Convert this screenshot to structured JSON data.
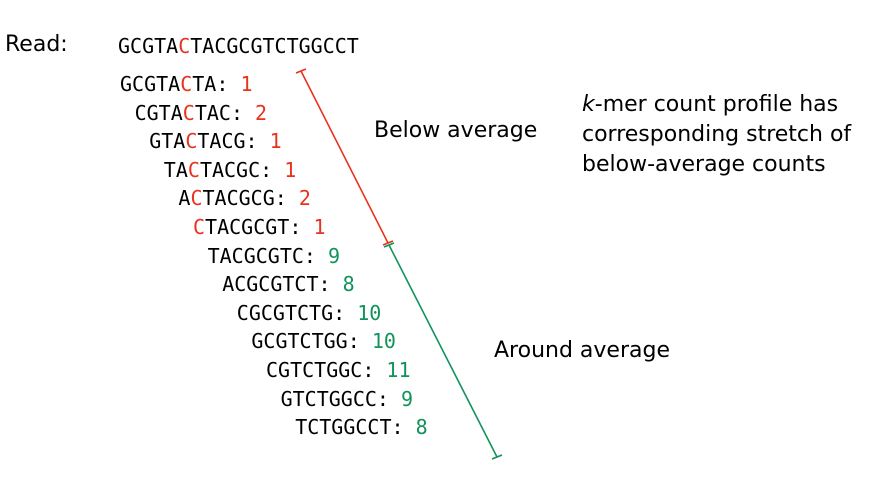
{
  "read": {
    "label": "Read:",
    "sequence_before": "GCGTA",
    "sequence_highlight": "C",
    "sequence_after": "TACGCGTCTGGCCT"
  },
  "kmers": [
    {
      "pre": "GCGTA",
      "hl": "C",
      "post": "TA",
      "count": "1",
      "group": "low"
    },
    {
      "pre": "CGTA",
      "hl": "C",
      "post": "TAC",
      "count": "2",
      "group": "low"
    },
    {
      "pre": "GTA",
      "hl": "C",
      "post": "TACG",
      "count": "1",
      "group": "low"
    },
    {
      "pre": "TA",
      "hl": "C",
      "post": "TACGC",
      "count": "1",
      "group": "low"
    },
    {
      "pre": "A",
      "hl": "C",
      "post": "TACGCG",
      "count": "2",
      "group": "low"
    },
    {
      "pre": "",
      "hl": "C",
      "post": "TACGCGT",
      "count": "1",
      "group": "low"
    },
    {
      "pre": "TACGCGTC",
      "hl": "",
      "post": "",
      "count": "9",
      "group": "avg"
    },
    {
      "pre": "ACGCGTCT",
      "hl": "",
      "post": "",
      "count": "8",
      "group": "avg"
    },
    {
      "pre": "CGCGTCTG",
      "hl": "",
      "post": "",
      "count": "10",
      "group": "avg"
    },
    {
      "pre": "GCGTCTGG",
      "hl": "",
      "post": "",
      "count": "10",
      "group": "avg"
    },
    {
      "pre": "CGTCTGGC",
      "hl": "",
      "post": "",
      "count": "11",
      "group": "avg"
    },
    {
      "pre": "GTCTGGCC",
      "hl": "",
      "post": "",
      "count": "9",
      "group": "avg"
    },
    {
      "pre": "TCTGGCCT",
      "hl": "",
      "post": "",
      "count": "8",
      "group": "avg"
    }
  ],
  "labels": {
    "below_average": "Below average",
    "around_average": "Around average"
  },
  "profile_note": {
    "k": "k",
    "line1_rest": "-mer count profile has",
    "line2": "corresponding stretch of",
    "line3": "below-average counts"
  },
  "colors": {
    "highlight": "#e8321e",
    "low": "#e8321e",
    "average": "#11935a",
    "text": "#000000"
  }
}
